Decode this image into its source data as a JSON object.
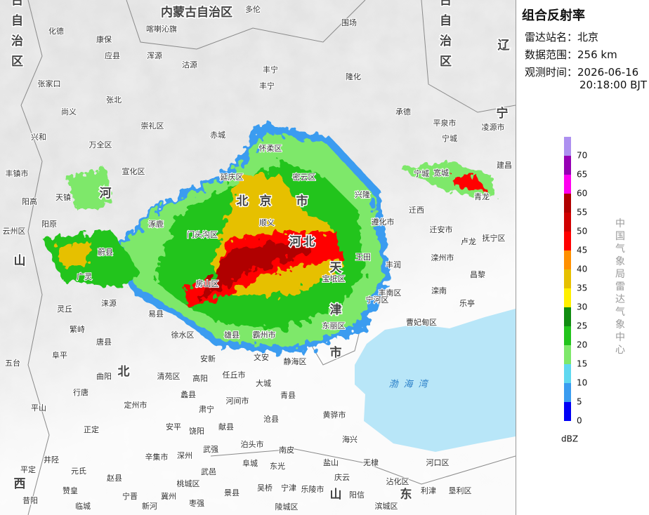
{
  "panel": {
    "title": "组合反射率",
    "station_label": "雷达站名：",
    "station": "北京",
    "range_label": "数据范围：",
    "range": "256 km",
    "time_label": "观测时间：",
    "date": "2026-06-16",
    "time": "20:18:00 BJT",
    "credit": "中国气象局雷达气象中心"
  },
  "legend": {
    "unit": "dBZ",
    "levels": [
      0,
      5,
      10,
      15,
      20,
      25,
      30,
      35,
      40,
      45,
      50,
      55,
      60,
      65,
      70
    ],
    "colors": [
      "#0000f6",
      "#3a9cf0",
      "#5fd8f0",
      "#7ee86a",
      "#22c41c",
      "#108c10",
      "#fff000",
      "#e6c000",
      "#ff9000",
      "#ff0000",
      "#d00000",
      "#b00000",
      "#ff00f0",
      "#9600b4",
      "#ad90f0"
    ]
  },
  "map": {
    "regions": [
      "内蒙古自治区",
      "内蒙古自治区",
      "内蒙古自治区",
      "辽",
      "宁",
      "河",
      "北",
      "山",
      "西",
      "天",
      "津",
      "市",
      "北",
      "京",
      "市",
      "河",
      "北",
      "山",
      "东"
    ],
    "places": [
      "多伦",
      "化德",
      "康保",
      "沽源",
      "围场",
      "隆化",
      "丰宁",
      "承德",
      "张北",
      "尚义",
      "崇礼区",
      "赤城",
      "平泉市",
      "凌源市",
      "兴和",
      "万全区",
      "宣化区",
      "延庆区",
      "怀柔区",
      "密云区",
      "兴隆",
      "宽城",
      "青龙",
      "天镇",
      "阳高",
      "丰镇市",
      "涿鹿",
      "蔚县",
      "门头沟区",
      "顺义",
      "迁西",
      "遵化市",
      "迁安市",
      "卢龙",
      "抚宁区",
      "广灵",
      "涞源",
      "房山区",
      "玉田",
      "滦州市",
      "昌黎",
      "丰润",
      "灵丘",
      "易县",
      "宝坻区",
      "滦南",
      "乐亭",
      "丰南区",
      "宁河区",
      "曹妃甸区",
      "唐县",
      "徐水区",
      "安新",
      "雄县",
      "霸州市",
      "文安",
      "静海区",
      "东丽区",
      "阜平",
      "五台",
      "曲阳",
      "清苑区",
      "高阳",
      "任丘市",
      "大城",
      "行唐",
      "定州市",
      "蠡县",
      "河间市",
      "青县",
      "平山",
      "肃宁",
      "沧县",
      "黄骅市",
      "正定",
      "安平",
      "饶阳",
      "献县",
      "泊头市",
      "海兴",
      "南皮",
      "盐山",
      "无棣",
      "河口区",
      "深州",
      "武强",
      "武邑",
      "阜城",
      "东光",
      "庆云",
      "沾化区",
      "利津",
      "垦利区",
      "赵县",
      "辛集市",
      "冀州",
      "枣强",
      "景县",
      "吴桥",
      "宁津",
      "乐陵市",
      "阳信",
      "滨城区",
      "元氏",
      "井陉",
      "平定",
      "赞皇",
      "宁晋",
      "临城",
      "昔阳",
      "新河",
      "桃城区",
      "陵城区",
      "宁城",
      "建昌",
      "宁城",
      "喀喇沁旗",
      "丰宁",
      "张家口",
      "阳原",
      "浑源",
      "繁峙",
      "云州区",
      "应县"
    ],
    "sea": "渤海湾"
  }
}
